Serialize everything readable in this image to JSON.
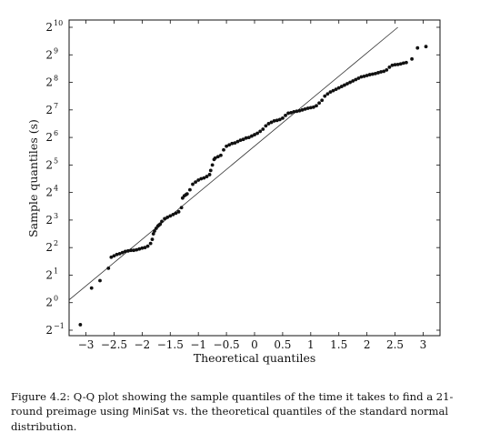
{
  "chart_data": {
    "type": "scatter",
    "xlabel": "Theoretical quantiles",
    "ylabel": "Sample quantiles (s)",
    "y_scale": "log2",
    "xlim": [
      -3.3,
      3.3
    ],
    "ylim_log2": [
      -1,
      10
    ],
    "x_ticks": [
      -3,
      -2.5,
      -2,
      -1.5,
      -1,
      -0.5,
      0,
      0.5,
      1,
      1.5,
      2,
      2.5,
      3
    ],
    "x_tick_labels": [
      "−3",
      "−2.5",
      "−2",
      "−1.5",
      "−1",
      "−0.5",
      "0",
      "0.5",
      "1",
      "1.5",
      "2",
      "2.5",
      "3"
    ],
    "y_tick_exponents": [
      -1,
      0,
      1,
      2,
      3,
      4,
      5,
      6,
      7,
      8,
      9,
      10
    ],
    "y_tick_base": "2",
    "y_tick_exponent_labels": [
      "−1",
      "0",
      "1",
      "2",
      "3",
      "4",
      "5",
      "6",
      "7",
      "8",
      "9",
      "10"
    ],
    "reference_line_log2": {
      "x": [
        -3.3,
        2.55
      ],
      "y": [
        0.1,
        10
      ]
    },
    "points_log2": {
      "x": [
        -3.1,
        -2.9,
        -2.75,
        -2.6,
        -2.55,
        -2.5,
        -2.45,
        -2.4,
        -2.35,
        -2.3,
        -2.25,
        -2.2,
        -2.15,
        -2.1,
        -2.05,
        -2.0,
        -1.95,
        -1.9,
        -1.85,
        -1.82,
        -1.8,
        -1.78,
        -1.75,
        -1.72,
        -1.7,
        -1.68,
        -1.65,
        -1.6,
        -1.55,
        -1.5,
        -1.45,
        -1.4,
        -1.35,
        -1.3,
        -1.28,
        -1.25,
        -1.22,
        -1.2,
        -1.15,
        -1.1,
        -1.05,
        -1.0,
        -0.95,
        -0.9,
        -0.85,
        -0.8,
        -0.78,
        -0.75,
        -0.72,
        -0.7,
        -0.65,
        -0.6,
        -0.55,
        -0.5,
        -0.45,
        -0.4,
        -0.35,
        -0.3,
        -0.25,
        -0.2,
        -0.15,
        -0.1,
        -0.05,
        0.0,
        0.05,
        0.1,
        0.15,
        0.2,
        0.25,
        0.3,
        0.35,
        0.4,
        0.45,
        0.5,
        0.55,
        0.6,
        0.65,
        0.7,
        0.75,
        0.8,
        0.85,
        0.9,
        0.95,
        1.0,
        1.05,
        1.1,
        1.15,
        1.2,
        1.25,
        1.3,
        1.35,
        1.4,
        1.45,
        1.5,
        1.55,
        1.6,
        1.65,
        1.7,
        1.75,
        1.8,
        1.85,
        1.9,
        1.95,
        2.0,
        2.05,
        2.1,
        2.15,
        2.2,
        2.25,
        2.3,
        2.35,
        2.4,
        2.45,
        2.5,
        2.55,
        2.6,
        2.65,
        2.7,
        2.8,
        2.9,
        3.05
      ],
      "y": [
        -0.8,
        0.53,
        0.8,
        1.25,
        1.65,
        1.7,
        1.75,
        1.78,
        1.82,
        1.86,
        1.88,
        1.9,
        1.9,
        1.92,
        1.95,
        1.98,
        2.0,
        2.05,
        2.15,
        2.3,
        2.5,
        2.6,
        2.7,
        2.78,
        2.82,
        2.85,
        2.95,
        3.05,
        3.1,
        3.15,
        3.2,
        3.25,
        3.3,
        3.45,
        3.8,
        3.88,
        3.92,
        3.95,
        4.1,
        4.3,
        4.38,
        4.45,
        4.5,
        4.53,
        4.58,
        4.65,
        4.8,
        5.0,
        5.2,
        5.25,
        5.3,
        5.35,
        5.55,
        5.68,
        5.73,
        5.78,
        5.8,
        5.85,
        5.9,
        5.93,
        5.98,
        6.0,
        6.05,
        6.1,
        6.15,
        6.22,
        6.3,
        6.42,
        6.5,
        6.55,
        6.6,
        6.62,
        6.65,
        6.7,
        6.8,
        6.88,
        6.9,
        6.93,
        6.95,
        6.97,
        7.0,
        7.03,
        7.06,
        7.08,
        7.1,
        7.15,
        7.25,
        7.35,
        7.5,
        7.58,
        7.65,
        7.7,
        7.75,
        7.8,
        7.85,
        7.9,
        7.95,
        8.0,
        8.05,
        8.1,
        8.15,
        8.2,
        8.22,
        8.25,
        8.28,
        8.3,
        8.32,
        8.35,
        8.38,
        8.4,
        8.45,
        8.55,
        8.62,
        8.64,
        8.65,
        8.67,
        8.7,
        8.72,
        8.85,
        9.25,
        9.3
      ]
    }
  },
  "caption": {
    "lead": "Figure 4.2: Q-Q plot showing the sample quantiles of the time it takes to find a 21-round preimage using ",
    "tool": "MiniSat",
    "tail": " vs. the theoretical quantiles of the standard normal distribution."
  }
}
